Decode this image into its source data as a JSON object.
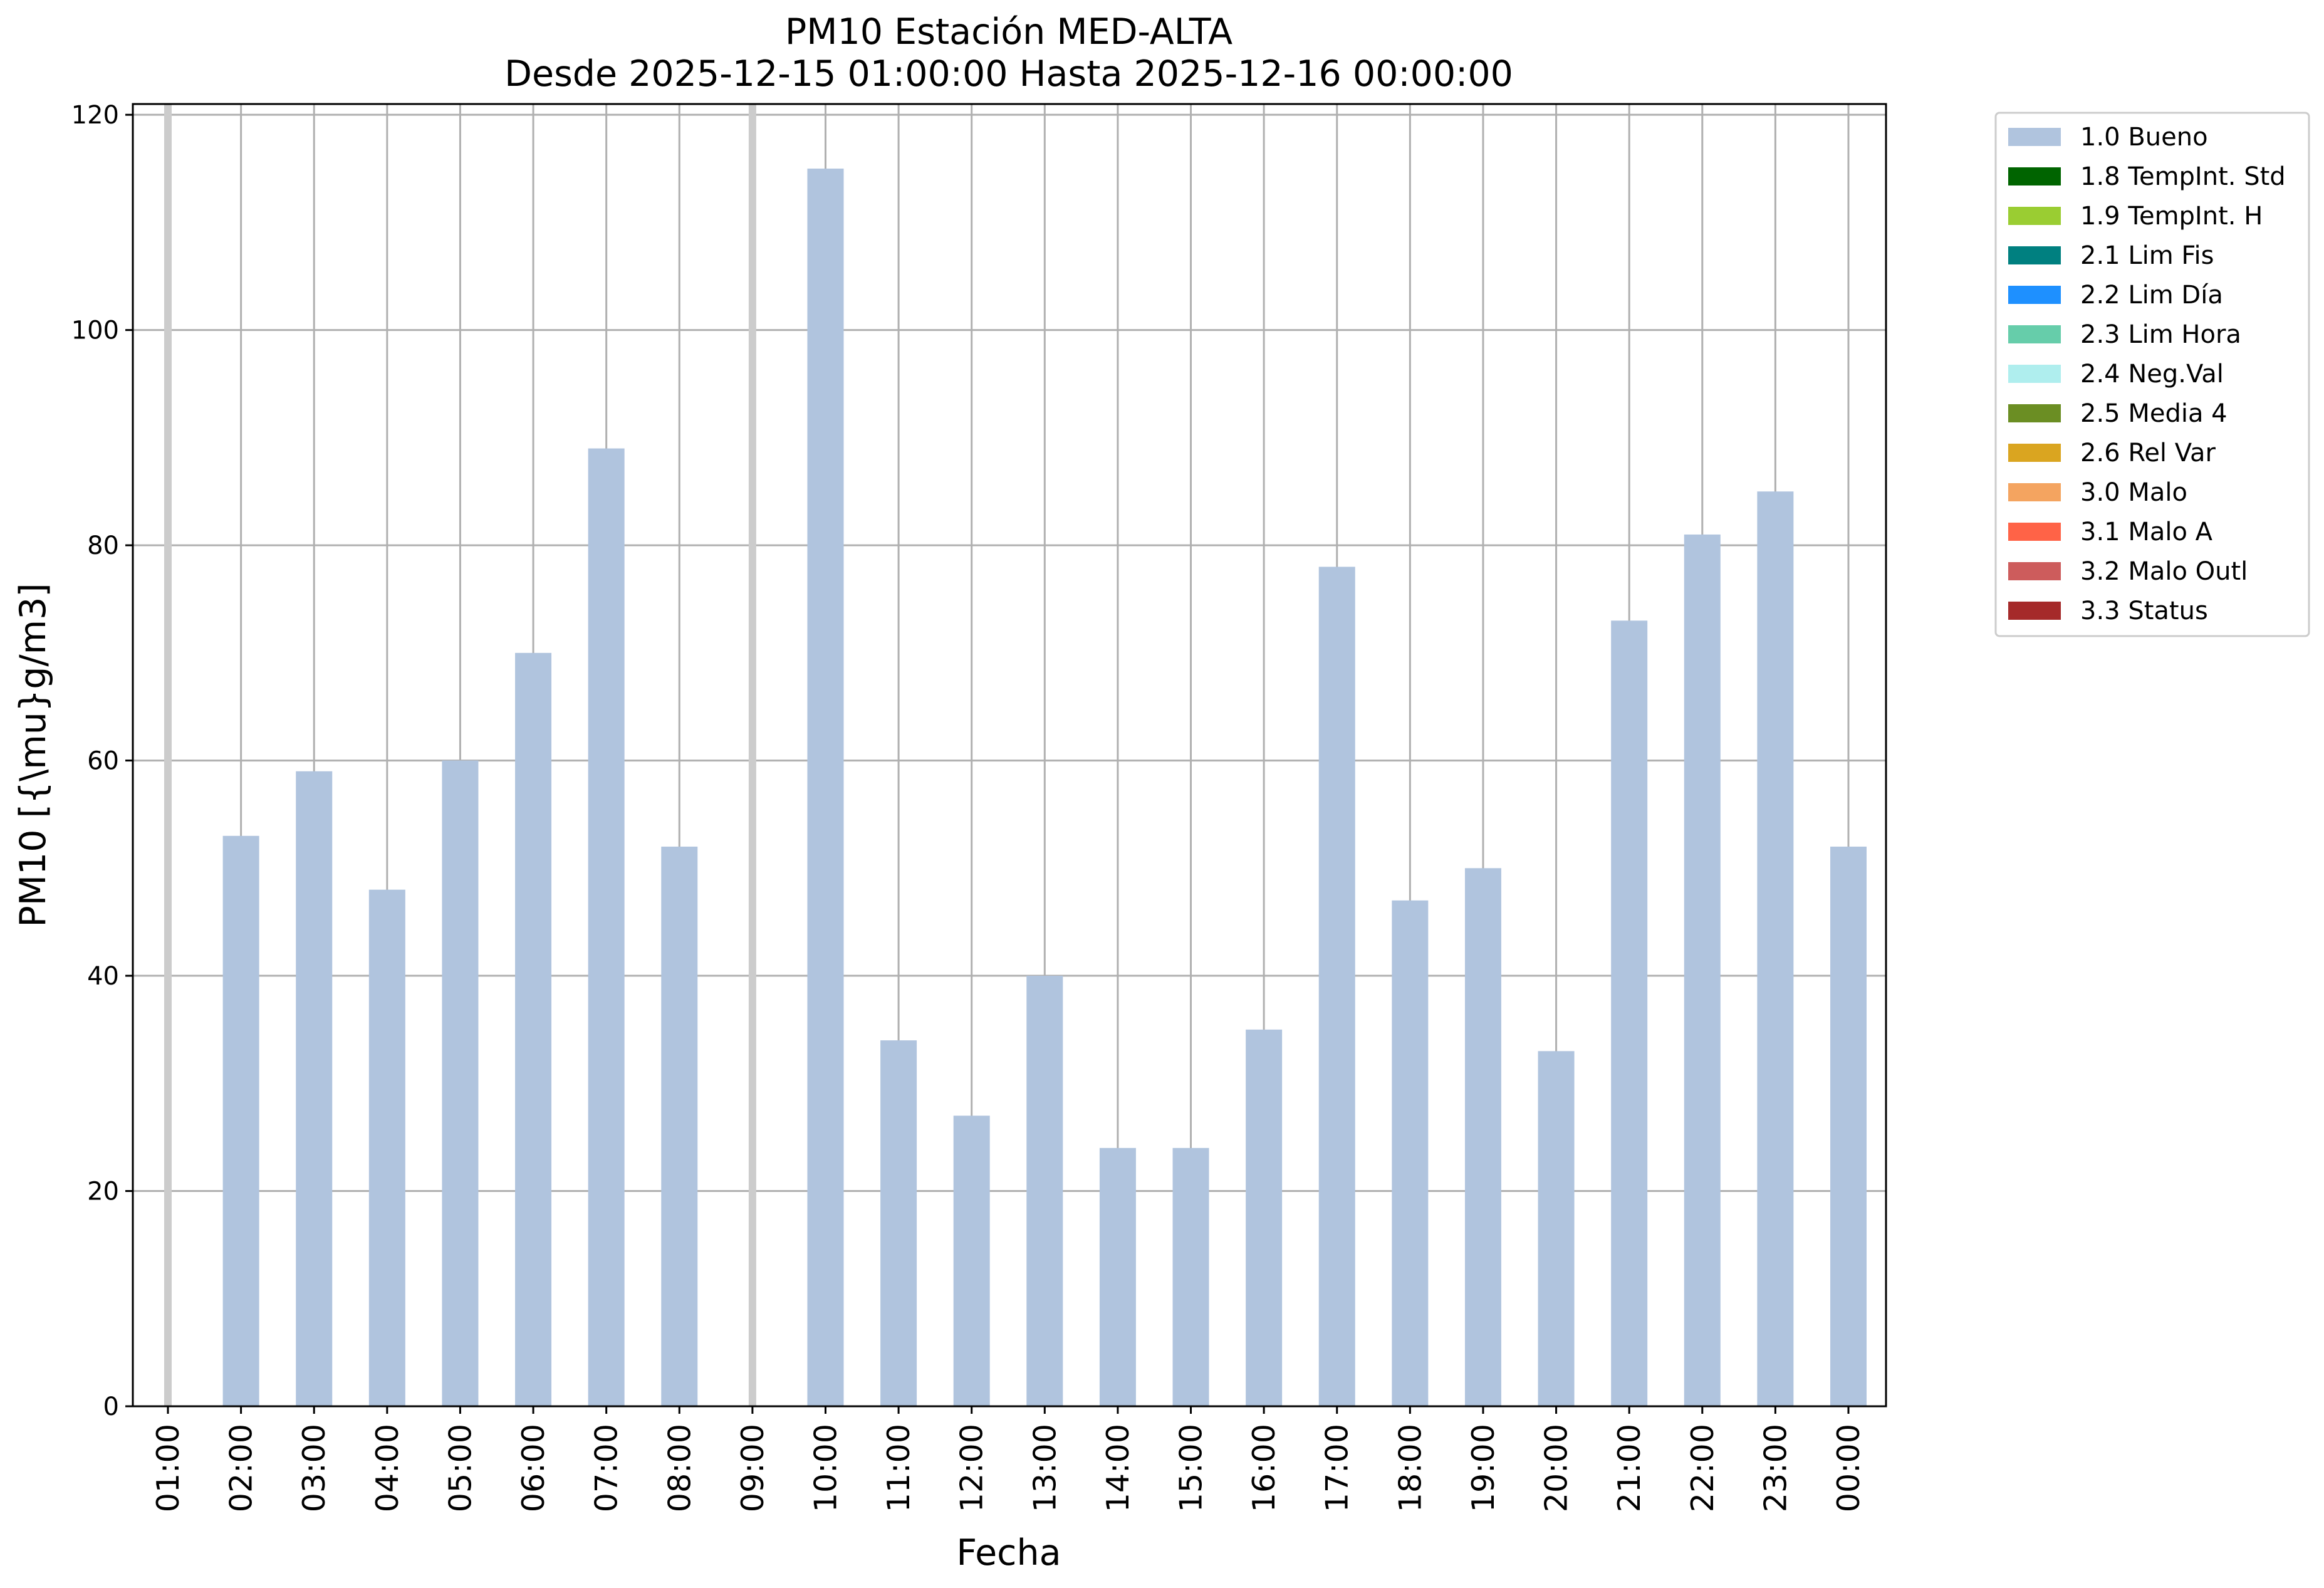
{
  "chart_data": {
    "type": "bar",
    "title": "PM10 Estación MED-ALTA",
    "subtitle": "Desde 2025-12-15 01:00:00 Hasta 2025-12-16 00:00:00",
    "xlabel": "Fecha",
    "ylabel": "PM10 [{\\mu}g/m3]",
    "ylim": [
      0,
      121
    ],
    "yticks": [
      0,
      20,
      40,
      60,
      80,
      100,
      120
    ],
    "grid": true,
    "legend_position": "outside-right-top",
    "categories": [
      "01:00",
      "02:00",
      "03:00",
      "04:00",
      "05:00",
      "06:00",
      "07:00",
      "08:00",
      "09:00",
      "10:00",
      "11:00",
      "12:00",
      "13:00",
      "14:00",
      "15:00",
      "16:00",
      "17:00",
      "18:00",
      "19:00",
      "20:00",
      "21:00",
      "22:00",
      "23:00",
      "00:00"
    ],
    "series": [
      {
        "name": "1.0 Bueno",
        "color": "#b0c4de",
        "values": [
          null,
          53,
          59,
          48,
          60,
          70,
          89,
          52,
          null,
          115,
          34,
          27,
          40,
          24,
          24,
          35,
          78,
          47,
          50,
          33,
          73,
          81,
          85,
          52
        ]
      }
    ],
    "legend": [
      {
        "label": "1.0 Bueno",
        "color": "#b0c4de"
      },
      {
        "label": "1.8 TempInt. Std",
        "color": "#006400"
      },
      {
        "label": "1.9 TempInt. H",
        "color": "#9acd32"
      },
      {
        "label": "2.1 Lim Fis",
        "color": "#008080"
      },
      {
        "label": "2.2 Lim Día",
        "color": "#1e90ff"
      },
      {
        "label": "2.3 Lim Hora",
        "color": "#66cdaa"
      },
      {
        "label": "2.4 Neg.Val",
        "color": "#afeeee"
      },
      {
        "label": "2.5 Media 4",
        "color": "#6b8e23"
      },
      {
        "label": "2.6 Rel Var",
        "color": "#daa520"
      },
      {
        "label": "3.0 Malo",
        "color": "#f4a460"
      },
      {
        "label": "3.1 Malo A",
        "color": "#ff6347"
      },
      {
        "label": "3.2 Malo Outl",
        "color": "#cd5c5c"
      },
      {
        "label": "3.3 Status",
        "color": "#a52a2a"
      }
    ],
    "missing_marker_color": "#cccccc"
  }
}
